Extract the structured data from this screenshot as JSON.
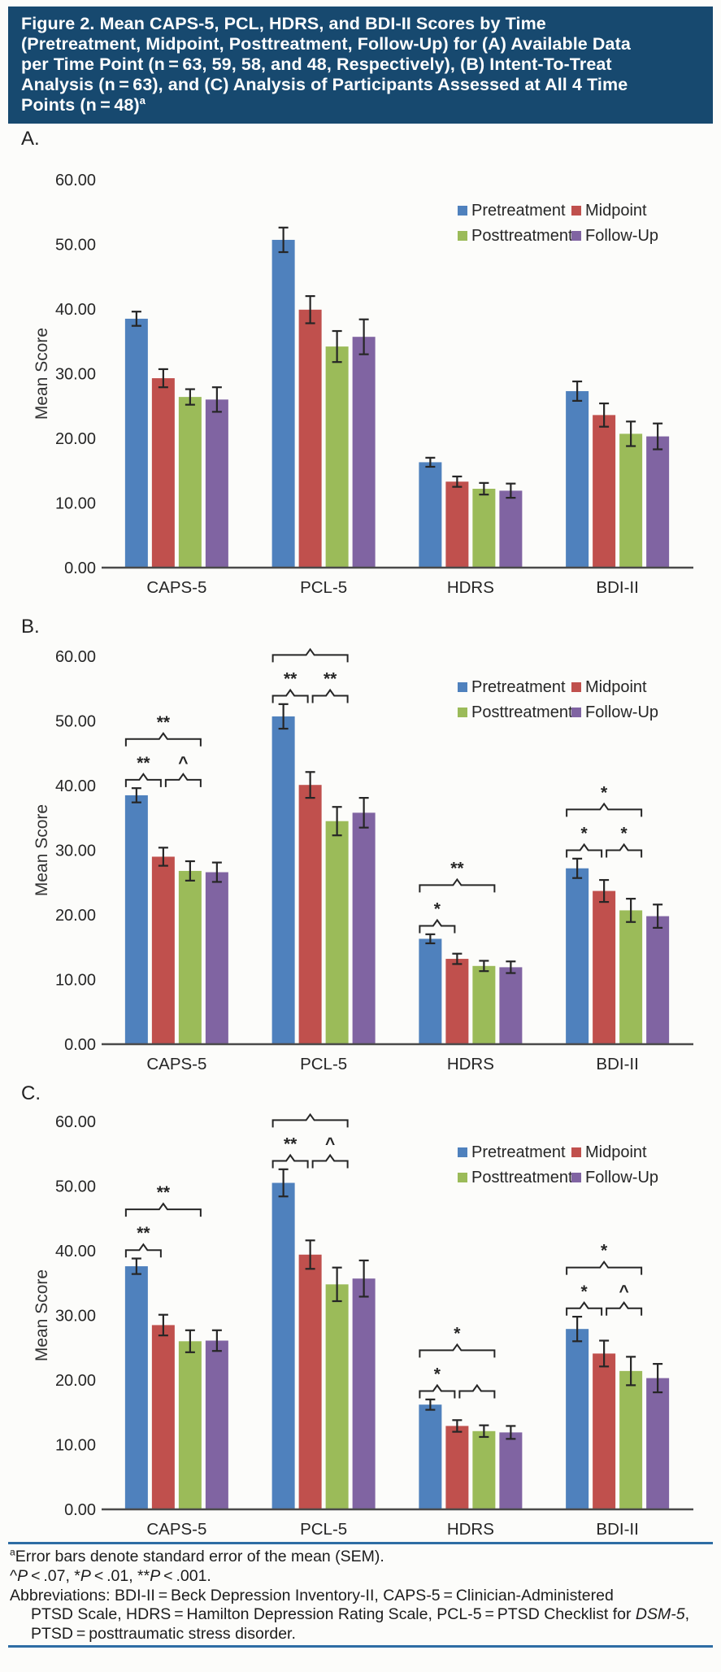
{
  "header": {
    "title_lines": [
      "Figure 2. Mean CAPS-5, PCL, HDRS, and BDI-II Scores by Time",
      "(Pretreatment, Midpoint, Posttreatment, Follow-Up) for (A) Available Data",
      "per Time Point (n = 63, 59, 58, and 48, Respectively), (B) Intent-To-Treat",
      "Analysis (n = 63), and (C) Analysis of Participants Assessed at All 4 Time",
      "Points (n = 48)"
    ],
    "title_sup": "a",
    "background": "#17496F",
    "text_color": "#FFFFFF"
  },
  "panels": [
    {
      "label": "A."
    },
    {
      "label": "B."
    },
    {
      "label": "C."
    }
  ],
  "colors": {
    "pretreatment": "#4F81BD",
    "midpoint": "#C0504D",
    "posttreatment": "#9BBB59",
    "follow_up": "#8064A2",
    "axis": "#4a4a4a",
    "error_bar": "#262626",
    "blue_rule": "#2E6DA4"
  },
  "chart_data": [
    {
      "type": "bar",
      "panel": "A",
      "categories": [
        "CAPS-5",
        "PCL-5",
        "HDRS",
        "BDI-II"
      ],
      "series": [
        {
          "name": "Pretreatment",
          "color": "#4F81BD",
          "values": [
            38.5,
            50.7,
            16.3,
            27.3
          ],
          "sem": [
            1.1,
            1.9,
            0.7,
            1.5
          ]
        },
        {
          "name": "Midpoint",
          "color": "#C0504D",
          "values": [
            29.3,
            39.9,
            13.3,
            23.6
          ],
          "sem": [
            1.4,
            2.1,
            0.8,
            1.8
          ]
        },
        {
          "name": "Posttreatment",
          "color": "#9BBB59",
          "values": [
            26.4,
            34.2,
            12.2,
            20.7
          ],
          "sem": [
            1.2,
            2.4,
            0.9,
            1.9
          ]
        },
        {
          "name": "Follow-Up",
          "color": "#8064A2",
          "values": [
            26.0,
            35.7,
            11.9,
            20.3
          ],
          "sem": [
            1.9,
            2.7,
            1.1,
            2.0
          ]
        }
      ],
      "ylabel": "Mean Score",
      "ylim": [
        0,
        60
      ],
      "yticks": [
        "0.00",
        "10.00",
        "20.00",
        "30.00",
        "40.00",
        "50.00",
        "60.00"
      ],
      "grid": false,
      "legend_position": "top-right",
      "significance": []
    },
    {
      "type": "bar",
      "panel": "B",
      "categories": [
        "CAPS-5",
        "PCL-5",
        "HDRS",
        "BDI-II"
      ],
      "series": [
        {
          "name": "Pretreatment",
          "color": "#4F81BD",
          "values": [
            38.5,
            50.7,
            16.3,
            27.2
          ],
          "sem": [
            1.1,
            1.9,
            0.7,
            1.5
          ]
        },
        {
          "name": "Midpoint",
          "color": "#C0504D",
          "values": [
            29.0,
            40.1,
            13.2,
            23.7
          ],
          "sem": [
            1.4,
            2.0,
            0.8,
            1.7
          ]
        },
        {
          "name": "Posttreatment",
          "color": "#9BBB59",
          "values": [
            26.8,
            34.5,
            12.1,
            20.7
          ],
          "sem": [
            1.5,
            2.2,
            0.8,
            1.8
          ]
        },
        {
          "name": "Follow-Up",
          "color": "#8064A2",
          "values": [
            26.6,
            35.8,
            11.9,
            19.8
          ],
          "sem": [
            1.5,
            2.3,
            0.9,
            1.8
          ]
        }
      ],
      "ylabel": "Mean Score",
      "ylim": [
        0,
        60
      ],
      "yticks": [
        "0.00",
        "10.00",
        "20.00",
        "30.00",
        "40.00",
        "50.00",
        "60.00"
      ],
      "grid": false,
      "legend_position": "top-right",
      "significance": [
        {
          "category": "CAPS-5",
          "brackets": [
            {
              "from": 0,
              "to": 2,
              "label": "**",
              "level": "outer"
            },
            {
              "from": 0,
              "to": 1,
              "label": "**",
              "level": "inner"
            },
            {
              "from": 1,
              "to": 2,
              "label": "^",
              "level": "inner"
            }
          ]
        },
        {
          "category": "PCL-5",
          "brackets": [
            {
              "from": 0,
              "to": 2,
              "label": "**",
              "level": "outer"
            },
            {
              "from": 0,
              "to": 1,
              "label": "**",
              "level": "inner"
            },
            {
              "from": 1,
              "to": 2,
              "label": "**",
              "level": "inner"
            }
          ]
        },
        {
          "category": "HDRS",
          "brackets": [
            {
              "from": 0,
              "to": 2,
              "label": "**",
              "level": "outer"
            },
            {
              "from": 0,
              "to": 1,
              "label": "*",
              "level": "inner"
            }
          ]
        },
        {
          "category": "BDI-II",
          "brackets": [
            {
              "from": 0,
              "to": 2,
              "label": "*",
              "level": "outer"
            },
            {
              "from": 0,
              "to": 1,
              "label": "*",
              "level": "inner"
            },
            {
              "from": 1,
              "to": 2,
              "label": "*",
              "level": "inner"
            }
          ]
        }
      ]
    },
    {
      "type": "bar",
      "panel": "C",
      "categories": [
        "CAPS-5",
        "PCL-5",
        "HDRS",
        "BDI-II"
      ],
      "series": [
        {
          "name": "Pretreatment",
          "color": "#4F81BD",
          "values": [
            37.6,
            50.5,
            16.2,
            27.9
          ],
          "sem": [
            1.2,
            2.1,
            0.8,
            1.9
          ]
        },
        {
          "name": "Midpoint",
          "color": "#C0504D",
          "values": [
            28.5,
            39.4,
            12.9,
            24.1
          ],
          "sem": [
            1.6,
            2.2,
            0.9,
            2.0
          ]
        },
        {
          "name": "Posttreatment",
          "color": "#9BBB59",
          "values": [
            26.0,
            34.8,
            12.1,
            21.4
          ],
          "sem": [
            1.7,
            2.6,
            0.9,
            2.2
          ]
        },
        {
          "name": "Follow-Up",
          "color": "#8064A2",
          "values": [
            26.1,
            35.7,
            11.9,
            20.3
          ],
          "sem": [
            1.6,
            2.8,
            1.0,
            2.2
          ]
        }
      ],
      "ylabel": "Mean Score",
      "ylim": [
        0,
        60
      ],
      "yticks": [
        "0.00",
        "10.00",
        "20.00",
        "30.00",
        "40.00",
        "50.00",
        "60.00"
      ],
      "grid": false,
      "legend_position": "top-right",
      "significance": [
        {
          "category": "CAPS-5",
          "brackets": [
            {
              "from": 0,
              "to": 2,
              "label": "**",
              "level": "outer"
            },
            {
              "from": 0,
              "to": 1,
              "label": "**",
              "level": "inner"
            }
          ]
        },
        {
          "category": "PCL-5",
          "brackets": [
            {
              "from": 0,
              "to": 2,
              "label": "**",
              "level": "outer"
            },
            {
              "from": 0,
              "to": 1,
              "label": "**",
              "level": "inner"
            },
            {
              "from": 1,
              "to": 2,
              "label": "^",
              "level": "inner"
            }
          ]
        },
        {
          "category": "HDRS",
          "brackets": [
            {
              "from": 0,
              "to": 2,
              "label": "*",
              "level": "outer"
            },
            {
              "from": 0,
              "to": 1,
              "label": "*",
              "level": "inner"
            },
            {
              "from": 1,
              "to": 2,
              "label": "",
              "level": "inner"
            }
          ]
        },
        {
          "category": "BDI-II",
          "brackets": [
            {
              "from": 0,
              "to": 2,
              "label": "*",
              "level": "outer"
            },
            {
              "from": 0,
              "to": 1,
              "label": "*",
              "level": "inner"
            },
            {
              "from": 1,
              "to": 2,
              "label": "^",
              "level": "inner"
            }
          ]
        }
      ]
    }
  ],
  "footnotes": [
    {
      "indent": false,
      "segments": [
        {
          "text": "a",
          "sup": true
        },
        {
          "text": "Error bars denote standard error of the mean (SEM)."
        }
      ]
    },
    {
      "indent": false,
      "segments": [
        {
          "text": "^"
        },
        {
          "text": "P",
          "italic": true
        },
        {
          "text": " < .07, *"
        },
        {
          "text": "P",
          "italic": true
        },
        {
          "text": " < .01, **"
        },
        {
          "text": "P",
          "italic": true
        },
        {
          "text": " < .001."
        }
      ]
    },
    {
      "indent": false,
      "segments": [
        {
          "text": "Abbreviations: BDI-II = Beck Depression Inventory-II, CAPS-5 = Clinician-Administered"
        }
      ]
    },
    {
      "indent": true,
      "segments": [
        {
          "text": "PTSD Scale, HDRS = Hamilton Depression Rating Scale, PCL-5 = PTSD Checklist for "
        },
        {
          "text": "DSM-5",
          "italic": true
        },
        {
          "text": ","
        }
      ]
    },
    {
      "indent": true,
      "segments": [
        {
          "text": "PTSD = posttraumatic stress disorder."
        }
      ]
    }
  ]
}
